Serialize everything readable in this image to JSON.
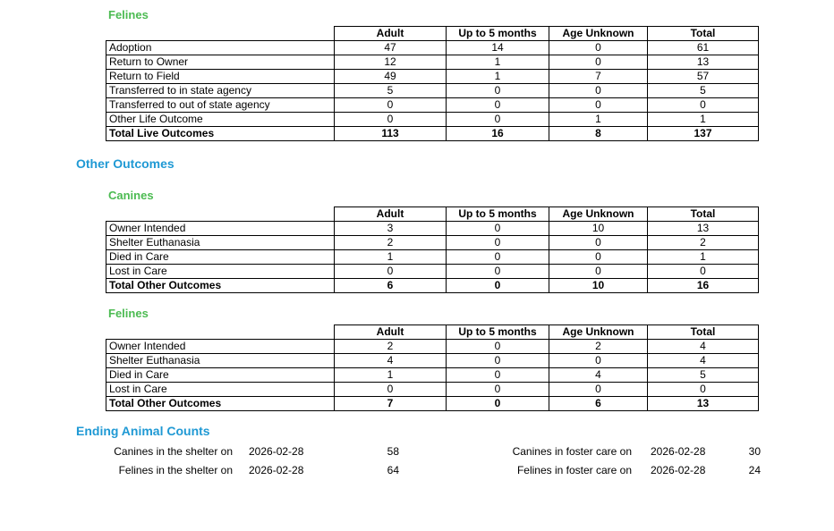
{
  "colors": {
    "species_heading": "#4CBB52",
    "section_heading": "#1F99D4",
    "table_border": "#000000",
    "text": "#000000"
  },
  "live_outcomes": {
    "felines": {
      "title": "Felines",
      "columns": [
        "Adult",
        "Up to 5 months",
        "Age Unknown",
        "Total"
      ],
      "rows": [
        {
          "label": "Adoption",
          "values": [
            "47",
            "14",
            "0",
            "61"
          ]
        },
        {
          "label": "Return to Owner",
          "values": [
            "12",
            "1",
            "0",
            "13"
          ]
        },
        {
          "label": "Return to Field",
          "values": [
            "49",
            "1",
            "7",
            "57"
          ]
        },
        {
          "label": "Transferred to in state agency",
          "values": [
            "5",
            "0",
            "0",
            "5"
          ]
        },
        {
          "label": "Transferred to out of state agency",
          "values": [
            "0",
            "0",
            "0",
            "0"
          ]
        },
        {
          "label": "Other Life Outcome",
          "values": [
            "0",
            "0",
            "1",
            "1"
          ]
        },
        {
          "label": "Total Live Outcomes",
          "values": [
            "113",
            "16",
            "8",
            "137"
          ],
          "bold": true
        }
      ]
    }
  },
  "other_outcomes": {
    "title": "Other Outcomes",
    "canines": {
      "title": "Canines",
      "columns": [
        "Adult",
        "Up to 5 months",
        "Age Unknown",
        "Total"
      ],
      "rows": [
        {
          "label": "Owner Intended",
          "values": [
            "3",
            "0",
            "10",
            "13"
          ]
        },
        {
          "label": "Shelter Euthanasia",
          "values": [
            "2",
            "0",
            "0",
            "2"
          ]
        },
        {
          "label": "Died in Care",
          "values": [
            "1",
            "0",
            "0",
            "1"
          ]
        },
        {
          "label": "Lost in Care",
          "values": [
            "0",
            "0",
            "0",
            "0"
          ]
        },
        {
          "label": "Total Other Outcomes",
          "values": [
            "6",
            "0",
            "10",
            "16"
          ],
          "bold": true
        }
      ]
    },
    "felines": {
      "title": "Felines",
      "columns": [
        "Adult",
        "Up to 5 months",
        "Age Unknown",
        "Total"
      ],
      "rows": [
        {
          "label": "Owner Intended",
          "values": [
            "2",
            "0",
            "2",
            "4"
          ]
        },
        {
          "label": "Shelter Euthanasia",
          "values": [
            "4",
            "0",
            "0",
            "4"
          ]
        },
        {
          "label": "Died in Care",
          "values": [
            "1",
            "0",
            "4",
            "5"
          ]
        },
        {
          "label": "Lost in Care",
          "values": [
            "0",
            "0",
            "0",
            "0"
          ]
        },
        {
          "label": "Total Other Outcomes",
          "values": [
            "7",
            "0",
            "6",
            "13"
          ],
          "bold": true
        }
      ]
    }
  },
  "ending_counts": {
    "title": "Ending Animal Counts",
    "rows": [
      {
        "shelter_label": "Canines in the shelter on",
        "shelter_date": "2026-02-28",
        "shelter_count": "58",
        "foster_label": "Canines in foster care on",
        "foster_date": "2026-02-28",
        "foster_count": "30"
      },
      {
        "shelter_label": "Felines in the shelter on",
        "shelter_date": "2026-02-28",
        "shelter_count": "64",
        "foster_label": "Felines in foster care on",
        "foster_date": "2026-02-28",
        "foster_count": "24"
      }
    ]
  }
}
